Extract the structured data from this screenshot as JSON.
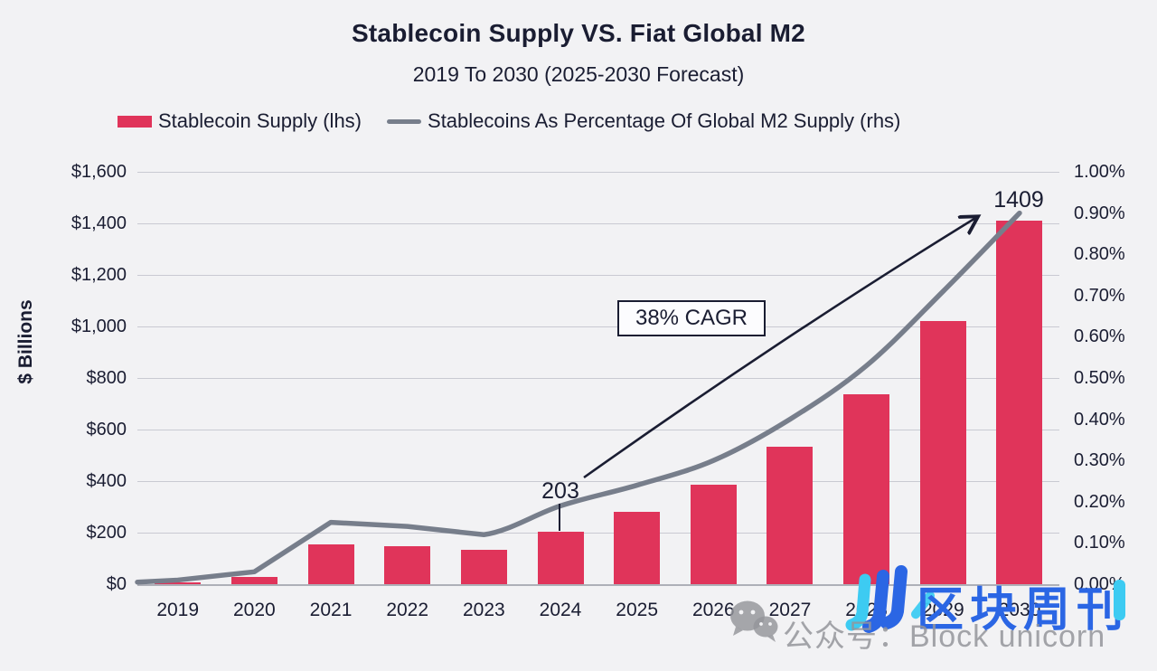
{
  "title": "Stablecoin Supply VS. Fiat Global M2",
  "subtitle": "2019 To 2030 (2025-2030 Forecast)",
  "legend": {
    "items": [
      {
        "label": "Stablecoin Supply (lhs)",
        "color": "#E0345A",
        "marker": "bar-swatch"
      },
      {
        "label": "Stablecoins As Percentage Of Global M2 Supply (rhs)",
        "color": "#777E8B",
        "marker": "line-swatch"
      }
    ]
  },
  "chart_data": {
    "type": "bar",
    "subtype": "combo-bar-line-dual-axis",
    "categories": [
      "2019",
      "2020",
      "2021",
      "2022",
      "2023",
      "2024",
      "2025",
      "2026",
      "2027",
      "2028",
      "2029",
      "2030"
    ],
    "series": [
      {
        "name": "Stablecoin Supply (lhs)",
        "type": "bar",
        "axis": "left",
        "color": "#E0345A",
        "values": [
          8,
          28,
          153,
          146,
          133,
          203,
          281,
          386,
          534,
          737,
          1020,
          1409
        ]
      },
      {
        "name": "Stablecoins As Percentage Of Global M2 Supply (rhs)",
        "type": "line",
        "axis": "right",
        "color": "#777E8B",
        "values": [
          0.01,
          0.03,
          0.15,
          0.14,
          0.12,
          0.19,
          0.24,
          0.3,
          0.4,
          0.53,
          0.71,
          0.9
        ]
      }
    ],
    "left_axis": {
      "title": "$ Billions",
      "min": 0,
      "max": 1600,
      "tick_step": 200,
      "ticks": [
        "$1,600",
        "$1,400",
        "$1,200",
        "$1,000",
        "$800",
        "$600",
        "$400",
        "$200",
        "$0"
      ]
    },
    "right_axis": {
      "min": 0,
      "max": 1,
      "tick_step": 0.1,
      "ticks": [
        "1.00%",
        "0.90%",
        "0.80%",
        "0.70%",
        "0.60%",
        "0.50%",
        "0.40%",
        "0.30%",
        "0.20%",
        "0.10%",
        "0.00%"
      ]
    },
    "grid": true,
    "legend_position": "top-left",
    "annotations": {
      "value_2024": "203",
      "value_2030": "1409",
      "cagr": "38% CAGR"
    }
  },
  "watermark": {
    "brand_cn": "区块周刊",
    "account_line": "公众号：Block unicorn",
    "brand_color": "#2B66E4",
    "accent_color": "#3DCBF2",
    "gray_color": "#94959A"
  }
}
